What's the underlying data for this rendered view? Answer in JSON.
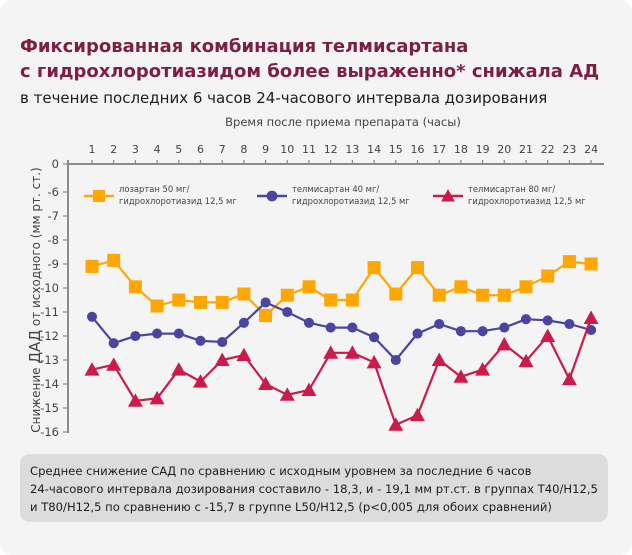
{
  "header": {
    "title_line1": "Фиксированная комбинация телмисартана",
    "title_line2": "с гидрохлоротиазидом более выраженно* снижала АД",
    "subtitle": "в течение последних 6 часов 24-часового интервала дозирования"
  },
  "note": {
    "line1": "Среднее снижение САД по сравнению с исходным уровнем за последние 6 часов",
    "line2": "24-часового интервала дозирования составило - 18,3, и - 19,1 мм рт.ст. в группах Т40/Н12,5",
    "line3": "и Т80/Н12,5 по сравнению с -15,7 в группе L50/Н12,5 (p<0,005 для обоих сравнений)"
  },
  "chart_data": {
    "type": "line",
    "title": "Время после приема препарата (часы)",
    "xlabel": "Время после приема препарата (часы)",
    "ylabel_prefix": "Снижение ",
    "ylabel_emph": "ДАД",
    "ylabel_suffix": " от исходного (мм рт. ст.)",
    "x": [
      1,
      2,
      3,
      4,
      5,
      6,
      7,
      8,
      9,
      10,
      11,
      12,
      13,
      14,
      15,
      16,
      17,
      18,
      19,
      20,
      21,
      22,
      23,
      24
    ],
    "x_tick_labels": [
      "1",
      "2",
      "3",
      "4",
      "5",
      "6",
      "7",
      "8",
      "9",
      "10",
      "11",
      "12",
      "13",
      "14",
      "15",
      "16",
      "17",
      "18",
      "19",
      "20",
      "21",
      "22",
      "23",
      "24"
    ],
    "y_tick_labels": [
      "0",
      "-6",
      "-7",
      "-8",
      "-9",
      "-10",
      "-11",
      "-12",
      "-13",
      "-14",
      "-15",
      "-16"
    ],
    "y_ticks": [
      0,
      -6,
      -7,
      -8,
      -9,
      -10,
      -11,
      -12,
      -13,
      -14,
      -15,
      -16
    ],
    "ylim": [
      -16,
      0
    ],
    "y_axis_break": "between 0 and -6",
    "grid": false,
    "legend_position": "top",
    "series": [
      {
        "name_line1": "лозартан 50 мг/",
        "name_line2": "гидрохлоротиазид 12,5 мг",
        "marker": "square",
        "color": "#ffa600",
        "values": [
          -9.1,
          -8.85,
          -9.95,
          -10.75,
          -10.5,
          -10.6,
          -10.6,
          -10.25,
          -11.15,
          -10.3,
          -9.95,
          -10.5,
          -10.5,
          -9.15,
          -10.25,
          -9.15,
          -10.3,
          -9.95,
          -10.3,
          -10.3,
          -9.95,
          -9.5,
          -8.9,
          -9.0
        ]
      },
      {
        "name_line1": "телмисартан 40 мг/",
        "name_line2": "гидрохлоротиазид 12,5 мг",
        "marker": "circle",
        "color": "#4b44a0",
        "values": [
          -11.2,
          -12.3,
          -12.0,
          -11.9,
          -11.9,
          -12.2,
          -12.25,
          -11.45,
          -10.6,
          -11.0,
          -11.45,
          -11.65,
          -11.65,
          -12.05,
          -13.0,
          -11.9,
          -11.5,
          -11.8,
          -11.8,
          -11.65,
          -11.3,
          -11.35,
          -11.5,
          -11.75
        ]
      },
      {
        "name_line1": "телмисартан 80 мг/",
        "name_line2": "гидрохлоротиазид 12,5 мг",
        "marker": "triangle",
        "color": "#cc1a4a",
        "values": [
          -13.4,
          -13.2,
          -14.7,
          -14.6,
          -13.4,
          -13.9,
          -13.0,
          -12.8,
          -14.0,
          -14.45,
          -14.25,
          -12.7,
          -12.7,
          -13.1,
          -15.7,
          -15.3,
          -13.0,
          -13.7,
          -13.4,
          -12.35,
          -13.05,
          -12.0,
          -13.8,
          -11.25
        ]
      }
    ]
  }
}
